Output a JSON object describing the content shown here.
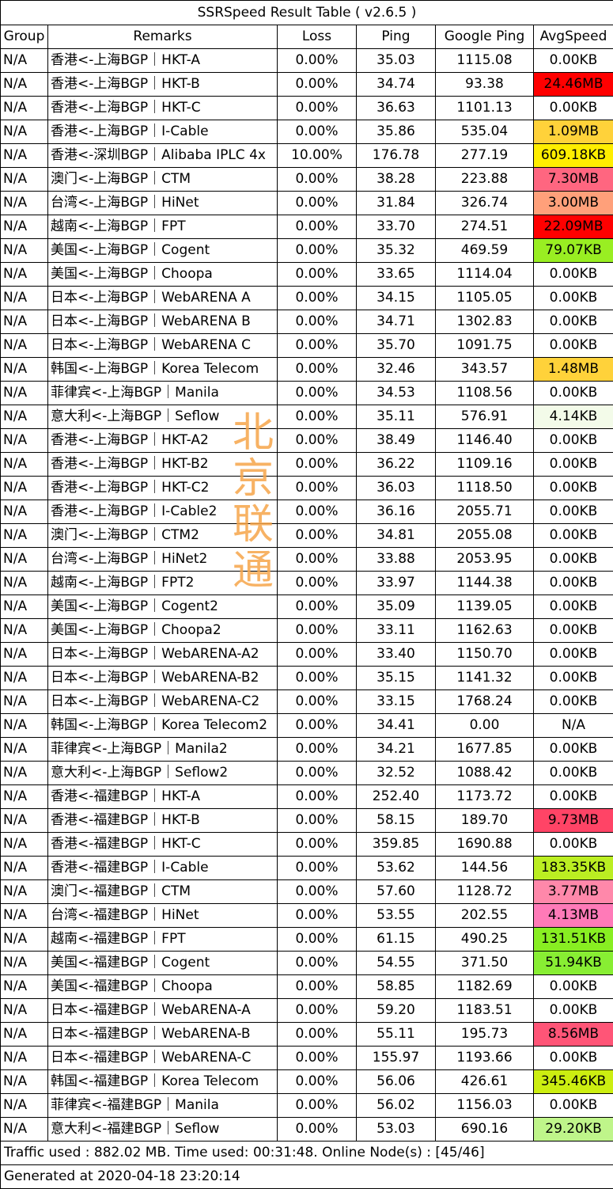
{
  "title": "SSRSpeed Result Table ( v2.6.5 )",
  "headers": [
    "Group",
    "Remarks",
    "Loss",
    "Ping",
    "Google Ping",
    "AvgSpeed"
  ],
  "rows": [
    [
      "N/A",
      "香港<-上海BGP｜HKT-A",
      "0.00%",
      "35.03",
      "1115.08",
      "0.00KB",
      ""
    ],
    [
      "N/A",
      "香港<-上海BGP｜HKT-B",
      "0.00%",
      "34.74",
      "93.38",
      "24.46MB",
      "#ff0000"
    ],
    [
      "N/A",
      "香港<-上海BGP｜HKT-C",
      "0.00%",
      "36.63",
      "1101.13",
      "0.00KB",
      ""
    ],
    [
      "N/A",
      "香港<-上海BGP｜I-Cable",
      "0.00%",
      "35.86",
      "535.04",
      "1.09MB",
      "#ffd23a"
    ],
    [
      "N/A",
      "香港<-深圳BGP｜Alibaba IPLC 4x",
      "10.00%",
      "176.78",
      "277.19",
      "609.18KB",
      "#ffee00"
    ],
    [
      "N/A",
      "澳门<-上海BGP｜CTM",
      "0.00%",
      "38.28",
      "223.88",
      "7.30MB",
      "#ff6680"
    ],
    [
      "N/A",
      "台湾<-上海BGP｜HiNet",
      "0.00%",
      "31.84",
      "326.74",
      "3.00MB",
      "#ffa07a"
    ],
    [
      "N/A",
      "越南<-上海BGP｜FPT",
      "0.00%",
      "33.70",
      "274.51",
      "22.09MB",
      "#ff0000"
    ],
    [
      "N/A",
      "美国<-上海BGP｜Cogent",
      "0.00%",
      "35.32",
      "469.59",
      "79.07KB",
      "#99ee22"
    ],
    [
      "N/A",
      "美国<-上海BGP｜Choopa",
      "0.00%",
      "33.65",
      "1114.04",
      "0.00KB",
      ""
    ],
    [
      "N/A",
      "日本<-上海BGP｜WebARENA A",
      "0.00%",
      "34.15",
      "1105.05",
      "0.00KB",
      ""
    ],
    [
      "N/A",
      "日本<-上海BGP｜WebARENA B",
      "0.00%",
      "34.71",
      "1302.83",
      "0.00KB",
      ""
    ],
    [
      "N/A",
      "日本<-上海BGP｜WebARENA C",
      "0.00%",
      "35.70",
      "1091.75",
      "0.00KB",
      ""
    ],
    [
      "N/A",
      "韩国<-上海BGP｜Korea Telecom",
      "0.00%",
      "32.46",
      "343.57",
      "1.48MB",
      "#ffd23a"
    ],
    [
      "N/A",
      "菲律宾<-上海BGP｜Manila",
      "0.00%",
      "34.53",
      "1108.56",
      "0.00KB",
      ""
    ],
    [
      "N/A",
      "意大利<-上海BGP｜Seflow",
      "0.00%",
      "35.11",
      "576.91",
      "4.14KB",
      "#f3fbe9"
    ],
    [
      "N/A",
      "香港<-上海BGP｜HKT-A2",
      "0.00%",
      "38.49",
      "1146.40",
      "0.00KB",
      ""
    ],
    [
      "N/A",
      "香港<-上海BGP｜HKT-B2",
      "0.00%",
      "36.22",
      "1109.16",
      "0.00KB",
      ""
    ],
    [
      "N/A",
      "香港<-上海BGP｜HKT-C2",
      "0.00%",
      "36.03",
      "1118.50",
      "0.00KB",
      ""
    ],
    [
      "N/A",
      "香港<-上海BGP｜I-Cable2",
      "0.00%",
      "36.16",
      "2055.71",
      "0.00KB",
      ""
    ],
    [
      "N/A",
      "澳门<-上海BGP｜CTM2",
      "0.00%",
      "34.81",
      "2055.08",
      "0.00KB",
      ""
    ],
    [
      "N/A",
      "台湾<-上海BGP｜HiNet2",
      "0.00%",
      "33.88",
      "2053.95",
      "0.00KB",
      ""
    ],
    [
      "N/A",
      "越南<-上海BGP｜FPT2",
      "0.00%",
      "33.97",
      "1144.38",
      "0.00KB",
      ""
    ],
    [
      "N/A",
      "美国<-上海BGP｜Cogent2",
      "0.00%",
      "35.09",
      "1139.05",
      "0.00KB",
      ""
    ],
    [
      "N/A",
      "美国<-上海BGP｜Choopa2",
      "0.00%",
      "33.11",
      "1162.63",
      "0.00KB",
      ""
    ],
    [
      "N/A",
      "日本<-上海BGP｜WebARENA-A2",
      "0.00%",
      "33.40",
      "1150.70",
      "0.00KB",
      ""
    ],
    [
      "N/A",
      "日本<-上海BGP｜WebARENA-B2",
      "0.00%",
      "35.15",
      "1141.32",
      "0.00KB",
      ""
    ],
    [
      "N/A",
      "日本<-上海BGP｜WebARENA-C2",
      "0.00%",
      "33.15",
      "1768.24",
      "0.00KB",
      ""
    ],
    [
      "N/A",
      "韩国<-上海BGP｜Korea Telecom2",
      "0.00%",
      "34.41",
      "0.00",
      "N/A",
      ""
    ],
    [
      "N/A",
      "菲律宾<-上海BGP｜Manila2",
      "0.00%",
      "34.21",
      "1677.85",
      "0.00KB",
      ""
    ],
    [
      "N/A",
      "意大利<-上海BGP｜Seflow2",
      "0.00%",
      "32.52",
      "1088.42",
      "0.00KB",
      ""
    ],
    [
      "N/A",
      "香港<-福建BGP｜HKT-A",
      "0.00%",
      "252.40",
      "1173.72",
      "0.00KB",
      ""
    ],
    [
      "N/A",
      "香港<-福建BGP｜HKT-B",
      "0.00%",
      "58.15",
      "189.70",
      "9.73MB",
      "#ff4466"
    ],
    [
      "N/A",
      "香港<-福建BGP｜HKT-C",
      "0.00%",
      "359.85",
      "1690.88",
      "0.00KB",
      ""
    ],
    [
      "N/A",
      "香港<-福建BGP｜I-Cable",
      "0.00%",
      "53.62",
      "144.56",
      "183.35KB",
      "#bbee22"
    ],
    [
      "N/A",
      "澳门<-福建BGP｜CTM",
      "0.00%",
      "57.60",
      "1128.72",
      "3.77MB",
      "#ff88aa"
    ],
    [
      "N/A",
      "台湾<-福建BGP｜HiNet",
      "0.00%",
      "53.55",
      "202.55",
      "4.13MB",
      "#ff7ab8"
    ],
    [
      "N/A",
      "越南<-福建BGP｜FPT",
      "0.00%",
      "61.15",
      "490.25",
      "131.51KB",
      "#88ee22"
    ],
    [
      "N/A",
      "美国<-福建BGP｜Cogent",
      "0.00%",
      "54.55",
      "371.50",
      "51.94KB",
      "#88ee33"
    ],
    [
      "N/A",
      "美国<-福建BGP｜Choopa",
      "0.00%",
      "58.85",
      "1182.69",
      "0.00KB",
      ""
    ],
    [
      "N/A",
      "日本<-福建BGP｜WebARENA-A",
      "0.00%",
      "59.20",
      "1183.51",
      "0.00KB",
      ""
    ],
    [
      "N/A",
      "日本<-福建BGP｜WebARENA-B",
      "0.00%",
      "55.11",
      "195.73",
      "8.56MB",
      "#ff5577"
    ],
    [
      "N/A",
      "日本<-福建BGP｜WebARENA-C",
      "0.00%",
      "155.97",
      "1193.66",
      "0.00KB",
      ""
    ],
    [
      "N/A",
      "韩国<-福建BGP｜Korea Telecom",
      "0.00%",
      "56.06",
      "426.61",
      "345.46KB",
      "#ccee11"
    ],
    [
      "N/A",
      "菲律宾<-福建BGP｜Manila",
      "0.00%",
      "56.02",
      "1156.03",
      "0.00KB",
      ""
    ],
    [
      "N/A",
      "意大利<-福建BGP｜Seflow",
      "0.00%",
      "53.03",
      "690.16",
      "29.20KB",
      "#bff58a"
    ]
  ],
  "footer": {
    "traffic": "Traffic used : 882.02 MB. Time used: 00:31:48. Online Node(s) : [45/46]",
    "generated": "Generated at 2020-04-18 23:20:14"
  },
  "watermark": [
    "北",
    "京",
    "联",
    "通"
  ]
}
